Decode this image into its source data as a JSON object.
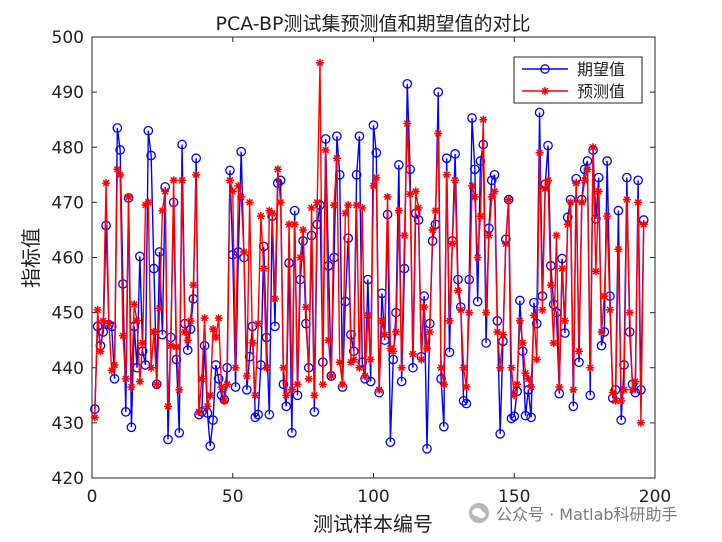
{
  "chart_data": {
    "type": "line",
    "title": "PCA-BP测试集预测值和期望值的对比",
    "xlabel": "测试样本编号",
    "ylabel": "指标值",
    "xlim": [
      0,
      200
    ],
    "ylim": [
      420,
      500
    ],
    "xticks": [
      "0",
      "50",
      "100",
      "150",
      "200"
    ],
    "yticks": [
      "420",
      "430",
      "440",
      "450",
      "460",
      "470",
      "480",
      "490",
      "500"
    ],
    "legend_position": "top-right",
    "series": [
      {
        "name": "期望值",
        "color": "#0000ff",
        "marker": "circle",
        "values": [
          432.5,
          447.5,
          444.0,
          446.5,
          465.8,
          447.8,
          447.5,
          438.0,
          483.5,
          479.5,
          455.2,
          432.0,
          470.8,
          429.2,
          447.5,
          440.0,
          460.2,
          443.0,
          440.5,
          483.0,
          478.5,
          458.0,
          437.0,
          461.0,
          446.0,
          472.8,
          427.0,
          445.5,
          470.0,
          441.5,
          428.2,
          480.5,
          448.0,
          443.2,
          447.0,
          452.5,
          478.0,
          431.5,
          432.0,
          444.0,
          431.8,
          425.8,
          430.5,
          440.5,
          438.0,
          435.0,
          434.2,
          440.0,
          475.8,
          460.5,
          436.5,
          461.0,
          479.2,
          460.0,
          436.0,
          442.0,
          447.5,
          431.0,
          431.5,
          440.5,
          462.0,
          445.5,
          431.5,
          467.5,
          447.5,
          473.5,
          474.0,
          437.0,
          433.0,
          459.0,
          428.2,
          468.5,
          435.0,
          456.0,
          463.0,
          448.0,
          440.0,
          464.0,
          432.0,
          466.0,
          469.5,
          441.0,
          481.5,
          458.5,
          438.5,
          460.0,
          482.0,
          475.0,
          436.5,
          452.0,
          463.5,
          446.0,
          443.0,
          475.0,
          482.0,
          441.0,
          438.0,
          456.0,
          437.5,
          484.0,
          479.0,
          435.5,
          453.5,
          445.0,
          467.8,
          426.5,
          441.5,
          450.0,
          476.8,
          437.5,
          458.0,
          491.5,
          476.0,
          440.0,
          468.0,
          466.8,
          442.0,
          453.0,
          425.3,
          448.0,
          463.0,
          466.0,
          490.0,
          438.0,
          429.3,
          478.0,
          442.8,
          463.0,
          478.8,
          456.0,
          451.0,
          434.0,
          433.5,
          456.0,
          485.3,
          476.0,
          452.0,
          477.5,
          480.5,
          444.5,
          465.3,
          474.0,
          475.0,
          448.5,
          428.0,
          444.8,
          463.3,
          470.5,
          430.8,
          431.2,
          435.7,
          452.2,
          443.0,
          431.3,
          436.0,
          431.0,
          451.8,
          448.0,
          486.3,
          453.0,
          473.3,
          480.3,
          458.5,
          451.5,
          450.0,
          435.3,
          459.8,
          446.3,
          467.3,
          470.5,
          433.0,
          474.3,
          441.0,
          470.5,
          476.0,
          477.5,
          435.0,
          479.5,
          467.0,
          474.5,
          444.0,
          446.5,
          477.5,
          453.0,
          434.5,
          436.0,
          468.5,
          430.5,
          440.5,
          474.5,
          446.5,
          437.0,
          435.5,
          474.0,
          436.0,
          466.8
        ],
        "values_count_note": "approximate reading, 200 samples"
      },
      {
        "name": "预测值",
        "color": "#ff0000",
        "marker": "star",
        "values": [
          431.0,
          450.5,
          443.0,
          448.5,
          473.5,
          448.0,
          439.5,
          440.5,
          476.0,
          475.0,
          445.8,
          438.0,
          471.0,
          436.5,
          451.5,
          448.5,
          437.5,
          444.5,
          469.5,
          470.0,
          440.0,
          446.5,
          437.0,
          450.8,
          468.5,
          472.0,
          433.0,
          444.0,
          474.0,
          443.8,
          436.0,
          474.0,
          446.5,
          445.0,
          448.5,
          455.0,
          475.0,
          432.0,
          438.0,
          449.0,
          433.0,
          435.0,
          447.0,
          445.5,
          449.0,
          436.5,
          434.0,
          437.0,
          474.0,
          472.0,
          440.0,
          473.0,
          471.0,
          461.0,
          438.5,
          470.0,
          444.5,
          435.0,
          448.0,
          467.5,
          458.0,
          440.0,
          468.5,
          468.0,
          452.5,
          476.0,
          470.0,
          440.0,
          435.0,
          466.0,
          436.0,
          466.0,
          437.0,
          460.0,
          465.0,
          451.0,
          438.0,
          469.0,
          435.0,
          470.0,
          495.3,
          437.0,
          479.5,
          445.0,
          438.5,
          469.5,
          478.0,
          441.0,
          437.0,
          468.0,
          469.5,
          441.0,
          441.5,
          469.5,
          440.0,
          469.0,
          438.5,
          449.5,
          441.5,
          473.0,
          474.5,
          436.0,
          448.5,
          446.0,
          471.0,
          443.5,
          443.0,
          446.5,
          468.5,
          440.0,
          464.0,
          484.3,
          471.5,
          442.5,
          472.0,
          469.0,
          441.5,
          451.0,
          443.5,
          446.5,
          465.0,
          468.5,
          482.5,
          440.0,
          437.0,
          475.0,
          448.5,
          462.5,
          474.0,
          454.0,
          450.5,
          440.0,
          436.5,
          450.0,
          473.0,
          471.0,
          460.0,
          467.5,
          485.0,
          450.0,
          464.0,
          471.0,
          472.0,
          446.5,
          440.0,
          446.0,
          462.5,
          470.5,
          440.0,
          435.0,
          437.0,
          448.5,
          444.5,
          439.0,
          438.0,
          436.5,
          449.5,
          441.5,
          479.0,
          450.5,
          472.5,
          474.0,
          455.0,
          444.5,
          464.0,
          436.5,
          458.0,
          448.5,
          466.0,
          470.0,
          436.0,
          473.5,
          443.0,
          470.0,
          474.0,
          476.0,
          440.0,
          480.0,
          457.5,
          472.0,
          446.5,
          453.0,
          467.5,
          450.5,
          435.5,
          434.0,
          461.5,
          434.0,
          436.0,
          470.5,
          450.0,
          436.0,
          437.5,
          470.0,
          430.0,
          466.0
        ]
      }
    ]
  },
  "watermark": {
    "text": "公众号 · Matlab科研助手",
    "icon": "wechat-icon"
  }
}
